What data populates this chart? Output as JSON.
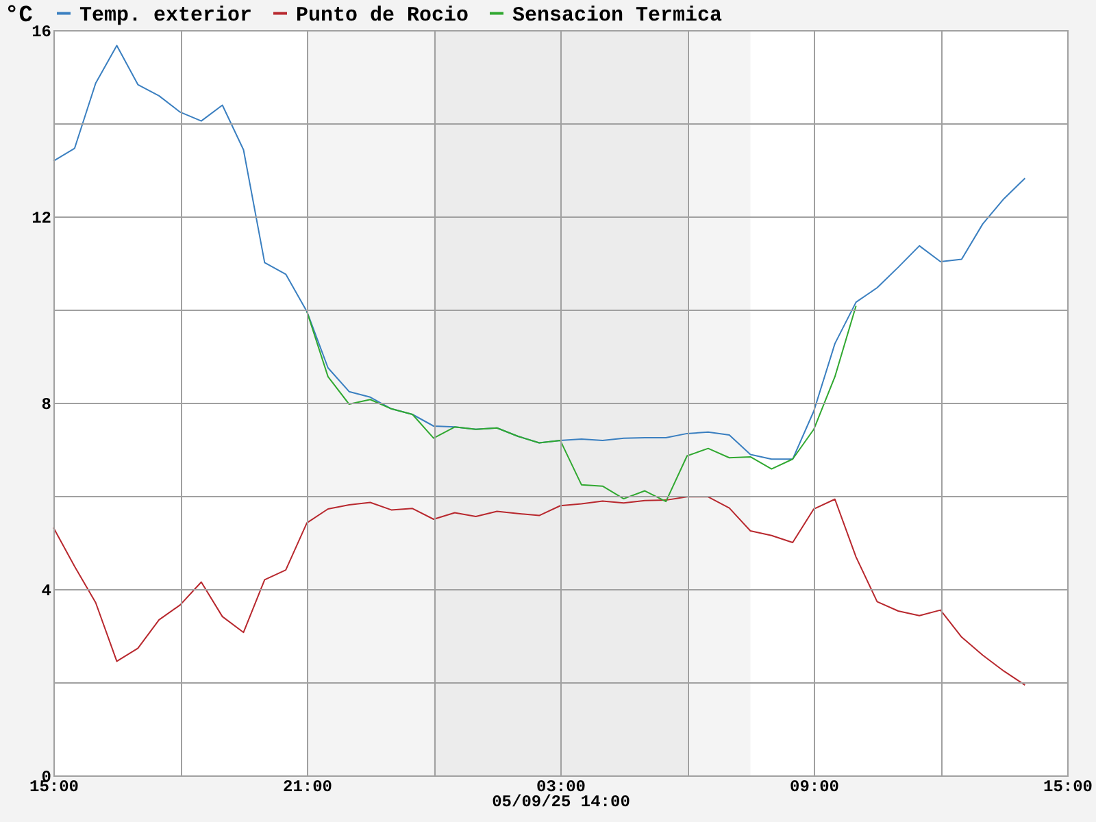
{
  "chart_data": {
    "type": "line",
    "ylabel": "°C",
    "xlabel": "05/09/25 14:00",
    "x": [
      "--09-04T15:00",
      "--09-04T15:30",
      "--09-04T16:00",
      "--09-04T16:30",
      "--09-04T17:00",
      "--09-04T17:30",
      "--09-04T18:00",
      "--09-04T18:30",
      "--09-04T19:00",
      "--09-04T19:30",
      "--09-04T20:00",
      "--09-04T20:30",
      "--09-04T21:00",
      "--09-04T21:30",
      "--09-04T22:00",
      "--09-04T22:30",
      "--09-04T23:00",
      "--09-04T23:30",
      "--09-05T00:00",
      "--09-05T00:30",
      "--09-05T01:00",
      "--09-05T01:30",
      "--09-05T02:00",
      "--09-05T02:30",
      "--09-05T03:00",
      "--09-05T03:30",
      "--09-05T04:00",
      "--09-05T04:30",
      "--09-05T05:00",
      "--09-05T05:30",
      "--09-05T06:00",
      "--09-05T06:30",
      "--09-05T07:00",
      "--09-05T07:30",
      "--09-05T08:00",
      "--09-05T08:30",
      "--09-05T09:00",
      "--09-05T09:30",
      "--09-05T10:00",
      "--09-05T10:30",
      "--09-05T11:00",
      "--09-05T11:30",
      "--09-05T12:00",
      "--09-05T12:30",
      "--09-05T13:00",
      "--09-05T13:30",
      "--09-05T14:00"
    ],
    "series": [
      {
        "name": "Temp. exterior",
        "color": "#3a7fc0",
        "values": [
          13.19,
          13.46,
          14.86,
          15.67,
          14.83,
          14.59,
          14.24,
          14.05,
          14.39,
          13.43,
          11.01,
          10.76,
          9.96,
          8.75,
          8.24,
          8.12,
          7.87,
          7.75,
          7.5,
          7.48,
          7.43,
          7.46,
          7.28,
          7.14,
          7.19,
          7.22,
          7.19,
          7.24,
          7.25,
          7.25,
          7.34,
          7.37,
          7.31,
          6.89,
          6.79,
          6.79,
          7.82,
          9.27,
          10.16,
          10.47,
          10.91,
          11.37,
          11.03,
          11.08,
          11.84,
          12.38,
          12.82
        ]
      },
      {
        "name": "Punto de Rocio",
        "color": "#b8282e",
        "values": [
          5.32,
          4.49,
          3.71,
          2.45,
          2.73,
          3.34,
          3.66,
          4.15,
          3.41,
          3.07,
          4.2,
          4.41,
          5.42,
          5.72,
          5.81,
          5.86,
          5.7,
          5.73,
          5.5,
          5.64,
          5.56,
          5.67,
          5.62,
          5.58,
          5.79,
          5.83,
          5.89,
          5.85,
          5.9,
          5.91,
          5.98,
          5.98,
          5.74,
          5.25,
          5.15,
          5,
          5.72,
          5.93,
          4.69,
          3.73,
          3.53,
          3.43,
          3.55,
          2.97,
          2.58,
          2.24,
          1.94
        ]
      },
      {
        "name": "Sensacion Termica",
        "color": "#30a830",
        "values": [
          null,
          null,
          null,
          null,
          null,
          null,
          null,
          null,
          null,
          null,
          null,
          null,
          9.96,
          8.56,
          7.97,
          8.07,
          7.87,
          7.75,
          7.24,
          7.48,
          7.43,
          7.46,
          7.28,
          7.14,
          7.19,
          6.24,
          6.21,
          5.94,
          6.11,
          5.88,
          6.86,
          7.02,
          6.82,
          6.84,
          6.58,
          6.79,
          7.43,
          8.56,
          10.08,
          null,
          null,
          null,
          null,
          null,
          null,
          null,
          null
        ]
      }
    ],
    "xlim": [
      "--09-04T15:00",
      "--09-05T15:00"
    ],
    "xticks": [
      {
        "value": "--09-04T15:00",
        "label": "15:00"
      },
      {
        "value": "--09-04T18:00",
        "label": null
      },
      {
        "value": "--09-04T21:00",
        "label": "21:00"
      },
      {
        "value": "--09-05T00:00",
        "label": null
      },
      {
        "value": "--09-05T03:00",
        "label": "03:00"
      },
      {
        "value": "--09-05T06:00",
        "label": null
      },
      {
        "value": "--09-05T09:00",
        "label": "09:00"
      },
      {
        "value": "--09-05T12:00",
        "label": null
      },
      {
        "value": "--09-05T15:00",
        "label": "15:00"
      }
    ],
    "ylim": [
      0,
      16
    ],
    "yticks": [
      0,
      {
        "value": 2,
        "label": null
      },
      4,
      {
        "value": 6,
        "label": null
      },
      8,
      {
        "value": 10,
        "label": null
      },
      12,
      {
        "value": 14,
        "label": null
      },
      16
    ],
    "bands": [
      {
        "axis": "x",
        "from": "--09-04T21:00",
        "to": "--09-05T07:30",
        "color": "#f4f4f4"
      },
      {
        "axis": "x",
        "from": "--09-05T00:00",
        "to": "--09-05T06:00",
        "color": "#ececec"
      }
    ],
    "grid": true,
    "legend": "top",
    "line_style": "solid",
    "marker": "none"
  }
}
